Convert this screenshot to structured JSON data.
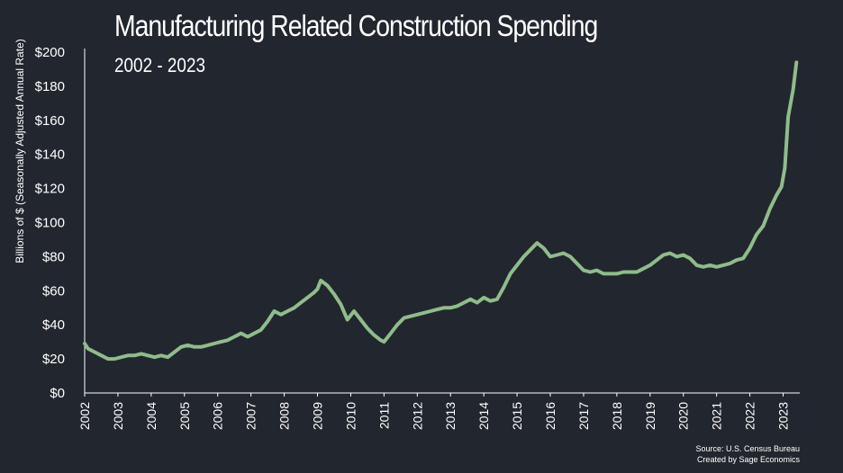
{
  "chart_data": {
    "type": "line",
    "title": "Manufacturing Related Construction Spending",
    "subtitle": "2002 - 2023",
    "xlabel": "",
    "ylabel": "Billions of $ (Seasonally Adjusted Annual Rate)",
    "ylim": [
      0,
      200
    ],
    "xlim": [
      2002,
      2023.5
    ],
    "y_ticks": [
      "$0",
      "$20",
      "$40",
      "$60",
      "$80",
      "$100",
      "$120",
      "$140",
      "$160",
      "$180",
      "$200"
    ],
    "x_ticks": [
      "2002",
      "2003",
      "2004",
      "2005",
      "2006",
      "2007",
      "2008",
      "2009",
      "2010",
      "2011",
      "2012",
      "2013",
      "2014",
      "2015",
      "2016",
      "2017",
      "2018",
      "2019",
      "2020",
      "2021",
      "2022",
      "2023"
    ],
    "grid": false,
    "legend": "none",
    "series": [
      {
        "color": "#8fbc8b",
        "x": [
          2002.0,
          2002.1,
          2002.3,
          2002.5,
          2002.7,
          2002.9,
          2003.1,
          2003.3,
          2003.5,
          2003.7,
          2003.9,
          2004.1,
          2004.3,
          2004.5,
          2004.7,
          2004.9,
          2005.1,
          2005.3,
          2005.5,
          2005.7,
          2005.9,
          2006.1,
          2006.3,
          2006.5,
          2006.7,
          2006.9,
          2007.1,
          2007.3,
          2007.5,
          2007.7,
          2007.9,
          2008.1,
          2008.3,
          2008.5,
          2008.7,
          2008.9,
          2009.0,
          2009.1,
          2009.3,
          2009.5,
          2009.7,
          2009.9,
          2010.1,
          2010.3,
          2010.5,
          2010.7,
          2010.9,
          2011.0,
          2011.2,
          2011.4,
          2011.6,
          2011.8,
          2012.0,
          2012.2,
          2012.4,
          2012.6,
          2012.8,
          2013.0,
          2013.2,
          2013.4,
          2013.6,
          2013.8,
          2014.0,
          2014.2,
          2014.4,
          2014.6,
          2014.8,
          2015.0,
          2015.2,
          2015.4,
          2015.6,
          2015.8,
          2016.0,
          2016.2,
          2016.4,
          2016.6,
          2016.8,
          2017.0,
          2017.2,
          2017.4,
          2017.6,
          2017.8,
          2018.0,
          2018.2,
          2018.4,
          2018.6,
          2018.8,
          2019.0,
          2019.2,
          2019.4,
          2019.6,
          2019.8,
          2020.0,
          2020.2,
          2020.4,
          2020.6,
          2020.8,
          2021.0,
          2021.2,
          2021.4,
          2021.6,
          2021.8,
          2022.0,
          2022.2,
          2022.4,
          2022.6,
          2022.8,
          2022.95,
          2023.05,
          2023.15,
          2023.3,
          2023.4
        ],
        "values": [
          29,
          26,
          24,
          22,
          20,
          20,
          21,
          22,
          22,
          23,
          22,
          21,
          22,
          21,
          24,
          27,
          28,
          27,
          27,
          28,
          29,
          30,
          31,
          33,
          35,
          33,
          35,
          37,
          42,
          48,
          46,
          48,
          50,
          53,
          56,
          59,
          61,
          66,
          63,
          58,
          52,
          43,
          48,
          43,
          38,
          34,
          31,
          30,
          35,
          40,
          44,
          45,
          46,
          47,
          48,
          49,
          50,
          50,
          51,
          53,
          55,
          53,
          56,
          54,
          55,
          62,
          70,
          75,
          80,
          84,
          88,
          85,
          80,
          81,
          82,
          80,
          76,
          72,
          71,
          72,
          70,
          70,
          70,
          71,
          71,
          71,
          73,
          75,
          78,
          81,
          82,
          80,
          81,
          79,
          75,
          74,
          75,
          74,
          75,
          76,
          78,
          79,
          85,
          93,
          98,
          108,
          116,
          121,
          132,
          162,
          178,
          194
        ]
      }
    ]
  },
  "footer": {
    "source": "Source: U.S. Census Bureau",
    "credit": "Created by Sage Economics"
  }
}
